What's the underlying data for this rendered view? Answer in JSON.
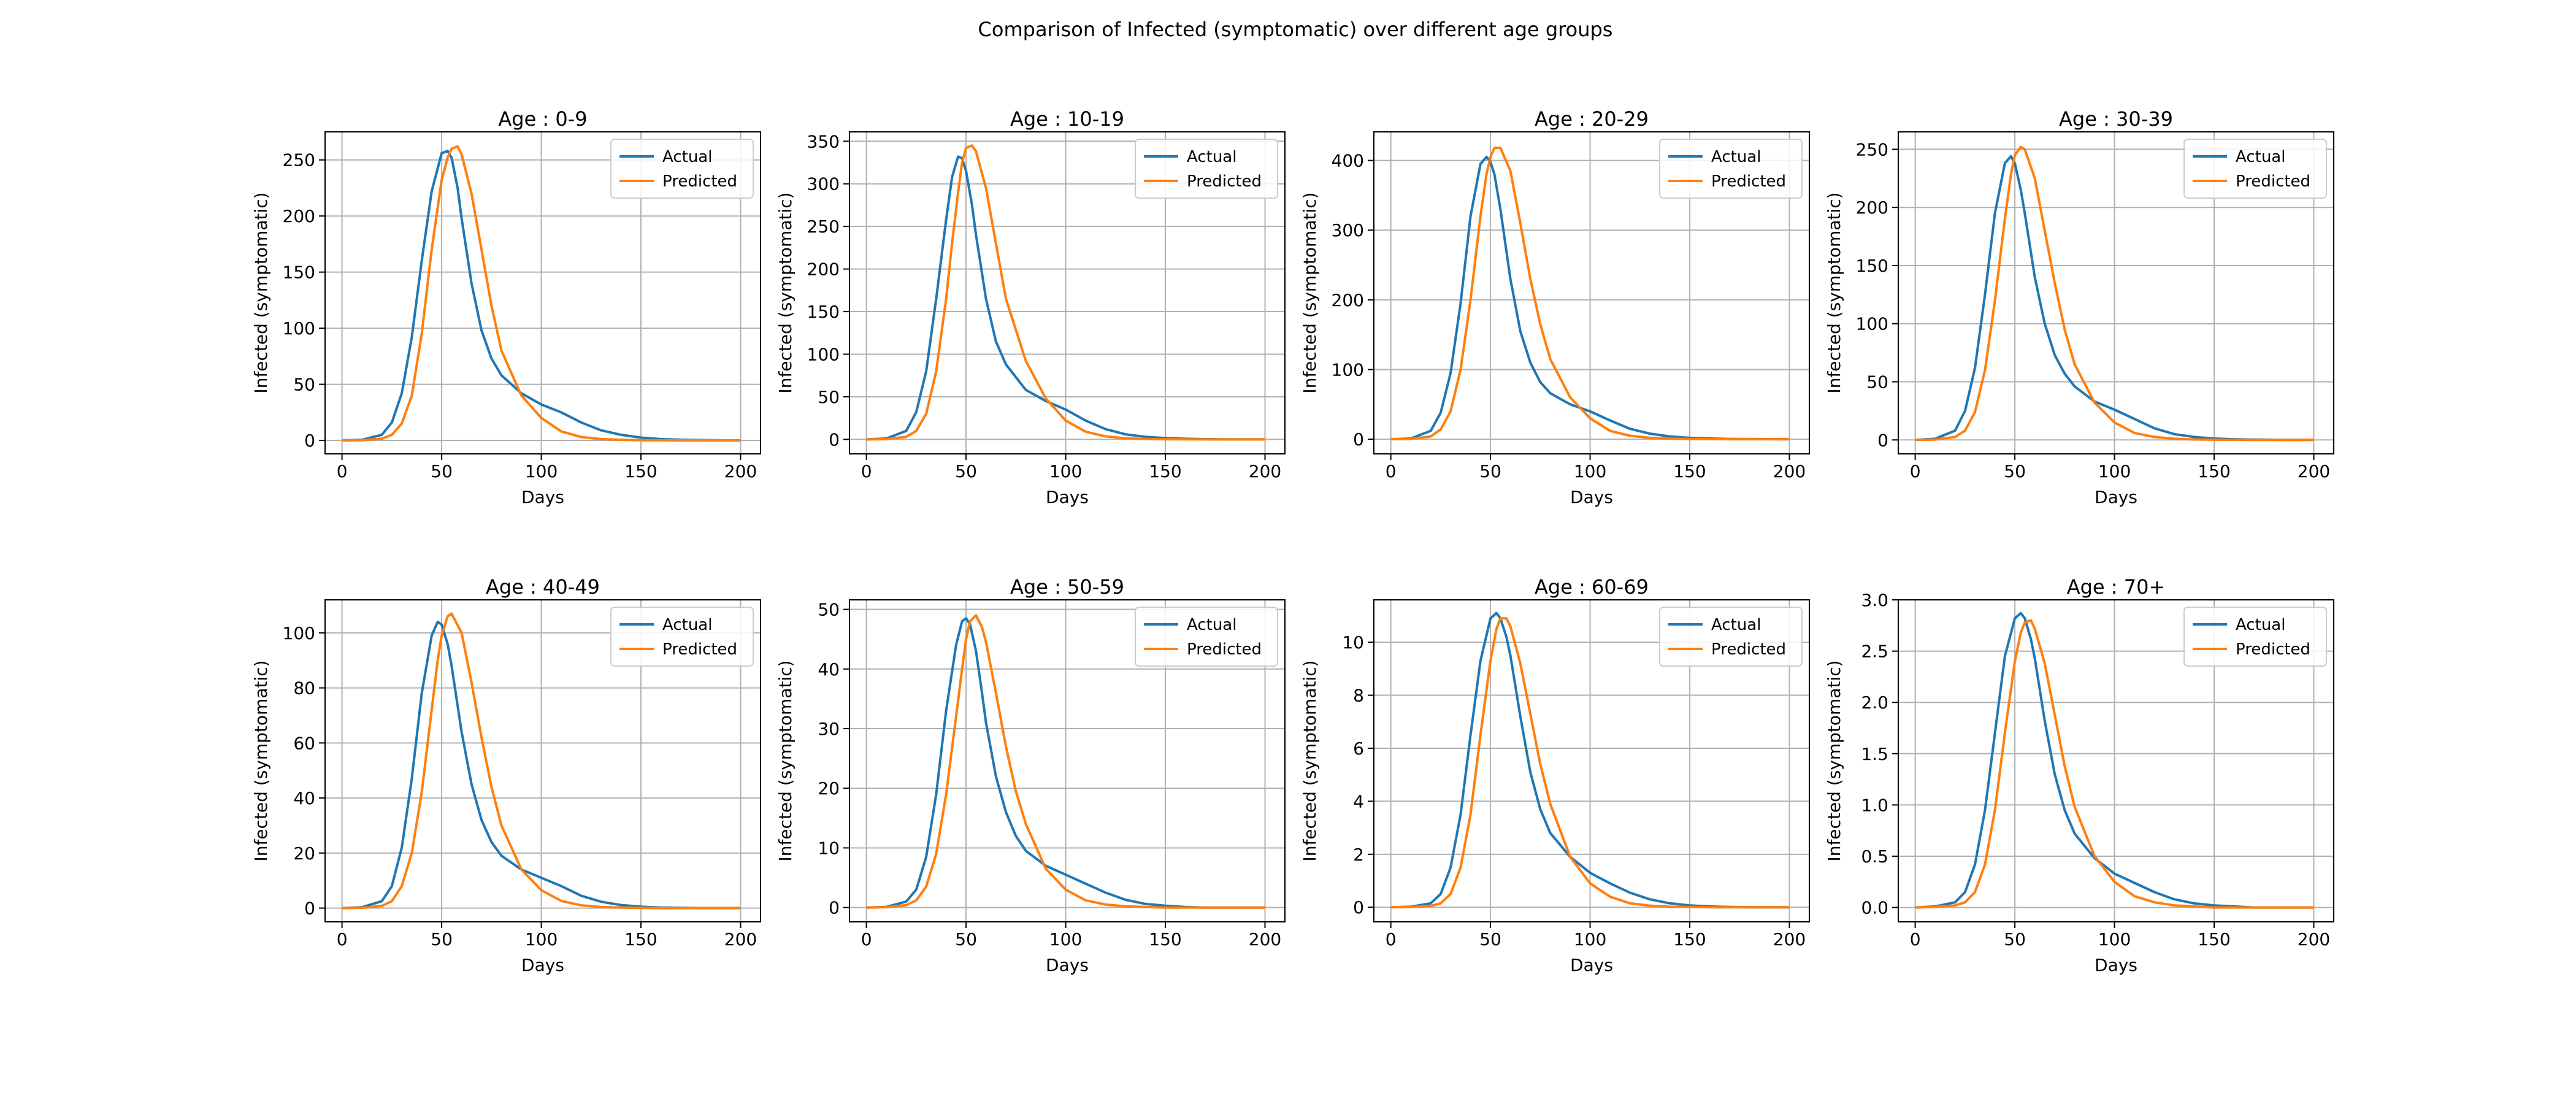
{
  "figure": {
    "suptitle": "Comparison of Infected (symptomatic) over different age groups"
  },
  "chart_data": [
    {
      "type": "line",
      "title": "Age : 0-9",
      "xlabel": "Days",
      "ylabel": "Infected (symptomatic)",
      "xlim": [
        -8.5,
        210
      ],
      "ylim": [
        -12,
        275
      ],
      "xticks": [
        0,
        50,
        100,
        150,
        200
      ],
      "yticks": [
        0,
        50,
        100,
        150,
        200,
        250
      ],
      "grid": true,
      "legend": "top-right",
      "x": [
        0,
        10,
        20,
        25,
        30,
        35,
        40,
        45,
        50,
        53,
        55,
        58,
        60,
        65,
        70,
        75,
        80,
        90,
        100,
        110,
        120,
        130,
        140,
        150,
        160,
        170,
        180,
        190,
        200
      ],
      "series": [
        {
          "name": "Actual",
          "color": "#1f77b4",
          "values": [
            0,
            0.5,
            5,
            16,
            42,
            92,
            160,
            222,
            256,
            258,
            252,
            225,
            198,
            140,
            98,
            73,
            58,
            42,
            32,
            25,
            16,
            9,
            5,
            2.5,
            1.2,
            0.6,
            0.3,
            0.1,
            0
          ]
        },
        {
          "name": "Predicted",
          "color": "#ff7f0e",
          "values": [
            0,
            0.2,
            1.5,
            5,
            15,
            40,
            95,
            170,
            232,
            252,
            260,
            262,
            255,
            220,
            170,
            120,
            80,
            40,
            20,
            8,
            3,
            1.2,
            0.5,
            0.2,
            0.1,
            0,
            0,
            0,
            0
          ]
        }
      ]
    },
    {
      "type": "line",
      "title": "Age : 10-19",
      "xlabel": "Days",
      "ylabel": "Infected (symptomatic)",
      "xlim": [
        -8.5,
        210
      ],
      "ylim": [
        -17,
        361
      ],
      "xticks": [
        0,
        50,
        100,
        150,
        200
      ],
      "yticks": [
        0,
        50,
        100,
        150,
        200,
        250,
        300,
        350
      ],
      "grid": true,
      "legend": "top-right",
      "x": [
        0,
        10,
        20,
        25,
        30,
        35,
        40,
        43,
        46,
        48,
        50,
        53,
        55,
        60,
        65,
        70,
        80,
        90,
        100,
        110,
        120,
        130,
        140,
        150,
        160,
        170,
        180,
        190,
        200
      ],
      "series": [
        {
          "name": "Actual",
          "color": "#1f77b4",
          "values": [
            0,
            1,
            10,
            32,
            80,
            165,
            258,
            308,
            332,
            330,
            315,
            275,
            240,
            165,
            115,
            88,
            58,
            45,
            35,
            22,
            12,
            6,
            3,
            1.5,
            0.7,
            0.3,
            0.1,
            0,
            0
          ]
        },
        {
          "name": "Predicted",
          "color": "#ff7f0e",
          "values": [
            0,
            0.3,
            3,
            10,
            30,
            80,
            165,
            230,
            290,
            325,
            342,
            345,
            338,
            295,
            230,
            165,
            92,
            48,
            22,
            9,
            3.5,
            1.3,
            0.5,
            0.2,
            0.1,
            0,
            0,
            0,
            0
          ]
        }
      ]
    },
    {
      "type": "line",
      "title": "Age : 20-29",
      "xlabel": "Days",
      "ylabel": "Infected (symptomatic)",
      "xlim": [
        -8.5,
        210
      ],
      "ylim": [
        -21,
        441
      ],
      "xticks": [
        0,
        50,
        100,
        150,
        200
      ],
      "yticks": [
        0,
        100,
        200,
        300,
        400
      ],
      "grid": true,
      "legend": "top-right",
      "x": [
        0,
        10,
        20,
        25,
        30,
        35,
        40,
        45,
        48,
        50,
        52,
        55,
        60,
        65,
        70,
        75,
        80,
        90,
        100,
        110,
        120,
        130,
        140,
        150,
        160,
        170,
        180,
        190,
        200
      ],
      "series": [
        {
          "name": "Actual",
          "color": "#1f77b4",
          "values": [
            0,
            1,
            12,
            38,
            95,
            195,
            320,
            395,
            405,
            398,
            380,
            330,
            230,
            155,
            110,
            82,
            66,
            50,
            40,
            27,
            15,
            8,
            4,
            2,
            1,
            0.4,
            0.2,
            0,
            0
          ]
        },
        {
          "name": "Predicted",
          "color": "#ff7f0e",
          "values": [
            0,
            0.4,
            4,
            14,
            40,
            100,
            200,
            320,
            380,
            405,
            418,
            418,
            385,
            310,
            230,
            165,
            115,
            60,
            30,
            12,
            5,
            2,
            0.8,
            0.3,
            0.1,
            0,
            0,
            0,
            0
          ]
        }
      ]
    },
    {
      "type": "line",
      "title": "Age : 30-39",
      "xlabel": "Days",
      "ylabel": "Infected (symptomatic)",
      "xlim": [
        -8.5,
        210
      ],
      "ylim": [
        -12,
        265
      ],
      "xticks": [
        0,
        50,
        100,
        150,
        200
      ],
      "yticks": [
        0,
        50,
        100,
        150,
        200,
        250
      ],
      "grid": true,
      "legend": "top-right",
      "x": [
        0,
        10,
        20,
        25,
        30,
        35,
        40,
        45,
        48,
        50,
        53,
        55,
        60,
        65,
        70,
        75,
        80,
        90,
        100,
        110,
        120,
        130,
        140,
        150,
        160,
        170,
        180,
        190,
        200
      ],
      "series": [
        {
          "name": "Actual",
          "color": "#1f77b4",
          "values": [
            0,
            1,
            8,
            25,
            62,
            125,
            195,
            238,
            244,
            238,
            215,
            195,
            140,
            100,
            73,
            57,
            46,
            33,
            26,
            18,
            10,
            5,
            2.5,
            1.2,
            0.6,
            0.3,
            0.1,
            0,
            0
          ]
        },
        {
          "name": "Predicted",
          "color": "#ff7f0e",
          "values": [
            0,
            0.3,
            2.5,
            8,
            24,
            60,
            120,
            190,
            228,
            245,
            252,
            250,
            225,
            180,
            135,
            95,
            65,
            32,
            15,
            6,
            2.5,
            1,
            0.4,
            0.2,
            0.1,
            0,
            0,
            0,
            0
          ]
        }
      ]
    },
    {
      "type": "line",
      "title": "Age : 40-49",
      "xlabel": "Days",
      "ylabel": "Infected (symptomatic)",
      "xlim": [
        -8.5,
        210
      ],
      "ylim": [
        -5,
        112
      ],
      "xticks": [
        0,
        50,
        100,
        150,
        200
      ],
      "yticks": [
        0,
        20,
        40,
        60,
        80,
        100
      ],
      "grid": true,
      "legend": "top-right",
      "x": [
        0,
        10,
        20,
        25,
        30,
        35,
        40,
        45,
        48,
        50,
        53,
        55,
        60,
        65,
        70,
        75,
        80,
        90,
        100,
        110,
        120,
        130,
        140,
        150,
        160,
        170,
        180,
        190,
        200
      ],
      "series": [
        {
          "name": "Actual",
          "color": "#1f77b4",
          "values": [
            0,
            0.3,
            2.5,
            8,
            22,
            47,
            78,
            99,
            104,
            103,
            96,
            88,
            64,
            45,
            32,
            24,
            19,
            14,
            11,
            8,
            4.5,
            2.3,
            1.1,
            0.5,
            0.2,
            0.1,
            0,
            0,
            0
          ]
        },
        {
          "name": "Predicted",
          "color": "#ff7f0e",
          "values": [
            0,
            0.1,
            0.8,
            2.5,
            8,
            20,
            42,
            72,
            90,
            99,
            106,
            107,
            100,
            82,
            62,
            44,
            30,
            14,
            6.5,
            2.6,
            1,
            0.4,
            0.2,
            0.1,
            0,
            0,
            0,
            0,
            0
          ]
        }
      ]
    },
    {
      "type": "line",
      "title": "Age : 50-59",
      "xlabel": "Days",
      "ylabel": "Infected (symptomatic)",
      "xlim": [
        -8.5,
        210
      ],
      "ylim": [
        -2.4,
        51.6
      ],
      "xticks": [
        0,
        50,
        100,
        150,
        200
      ],
      "yticks": [
        0,
        10,
        20,
        30,
        40,
        50
      ],
      "grid": true,
      "legend": "top-right",
      "x": [
        0,
        10,
        20,
        25,
        30,
        35,
        40,
        45,
        48,
        50,
        52,
        55,
        58,
        60,
        65,
        70,
        75,
        80,
        90,
        100,
        110,
        120,
        130,
        140,
        150,
        160,
        170,
        180,
        190,
        200
      ],
      "series": [
        {
          "name": "Actual",
          "color": "#1f77b4",
          "values": [
            0,
            0.1,
            1,
            3,
            8.5,
            19,
            33,
            44,
            48,
            48.5,
            47.5,
            43,
            36,
            31,
            22,
            16,
            12,
            9.5,
            7,
            5.5,
            4,
            2.5,
            1.3,
            0.6,
            0.3,
            0.1,
            0,
            0,
            0,
            0
          ]
        },
        {
          "name": "Predicted",
          "color": "#ff7f0e",
          "values": [
            0,
            0.05,
            0.4,
            1.2,
            3.5,
            9,
            19,
            32,
            40,
            45,
            48,
            49,
            47,
            44.5,
            36,
            27,
            19.5,
            14,
            6.5,
            3,
            1.2,
            0.5,
            0.2,
            0.1,
            0,
            0,
            0,
            0,
            0,
            0
          ]
        }
      ]
    },
    {
      "type": "line",
      "title": "Age : 60-69",
      "xlabel": "Days",
      "ylabel": "Infected (symptomatic)",
      "xlim": [
        -8.5,
        210
      ],
      "ylim": [
        -0.55,
        11.6
      ],
      "xticks": [
        0,
        50,
        100,
        150,
        200
      ],
      "yticks": [
        0,
        2,
        4,
        6,
        8,
        10
      ],
      "grid": true,
      "legend": "top-right",
      "x": [
        0,
        10,
        20,
        25,
        30,
        35,
        40,
        45,
        50,
        53,
        55,
        58,
        60,
        65,
        70,
        75,
        80,
        90,
        100,
        110,
        120,
        130,
        140,
        150,
        160,
        170,
        180,
        190,
        200
      ],
      "series": [
        {
          "name": "Actual",
          "color": "#1f77b4",
          "values": [
            0,
            0.02,
            0.15,
            0.5,
            1.5,
            3.5,
            6.5,
            9.3,
            10.9,
            11.1,
            10.9,
            10.2,
            9.5,
            7.2,
            5.1,
            3.7,
            2.8,
            1.9,
            1.3,
            0.9,
            0.55,
            0.3,
            0.15,
            0.07,
            0.03,
            0.01,
            0,
            0,
            0
          ]
        },
        {
          "name": "Predicted",
          "color": "#ff7f0e",
          "values": [
            0,
            0.01,
            0.05,
            0.15,
            0.5,
            1.5,
            3.5,
            6.5,
            9.3,
            10.5,
            10.9,
            10.9,
            10.6,
            9.2,
            7.3,
            5.4,
            3.9,
            1.9,
            0.9,
            0.4,
            0.15,
            0.06,
            0.02,
            0.01,
            0,
            0,
            0,
            0,
            0
          ]
        }
      ]
    },
    {
      "type": "line",
      "title": "Age : 70+",
      "xlabel": "Days",
      "ylabel": "Infected (symptomatic)",
      "xlim": [
        -8.5,
        210
      ],
      "ylim": [
        -0.14,
        3.0
      ],
      "xticks": [
        0,
        50,
        100,
        150,
        200
      ],
      "yticks": [
        0.0,
        0.5,
        1.0,
        1.5,
        2.0,
        2.5,
        3.0
      ],
      "grid": true,
      "legend": "top-right",
      "x": [
        0,
        10,
        20,
        25,
        30,
        35,
        40,
        45,
        50,
        53,
        55,
        58,
        60,
        65,
        70,
        75,
        80,
        90,
        100,
        110,
        120,
        130,
        140,
        150,
        160,
        170,
        180,
        190,
        200
      ],
      "series": [
        {
          "name": "Actual",
          "color": "#1f77b4",
          "values": [
            0,
            0.01,
            0.05,
            0.15,
            0.42,
            0.95,
            1.7,
            2.45,
            2.82,
            2.87,
            2.82,
            2.62,
            2.43,
            1.82,
            1.3,
            0.95,
            0.72,
            0.48,
            0.33,
            0.24,
            0.15,
            0.08,
            0.04,
            0.02,
            0.01,
            0,
            0,
            0,
            0
          ]
        },
        {
          "name": "Predicted",
          "color": "#ff7f0e",
          "values": [
            0,
            0.005,
            0.02,
            0.05,
            0.15,
            0.42,
            0.95,
            1.7,
            2.4,
            2.68,
            2.78,
            2.8,
            2.72,
            2.38,
            1.88,
            1.38,
            0.98,
            0.5,
            0.25,
            0.11,
            0.05,
            0.02,
            0.01,
            0,
            0,
            0,
            0,
            0,
            0
          ]
        }
      ]
    }
  ]
}
